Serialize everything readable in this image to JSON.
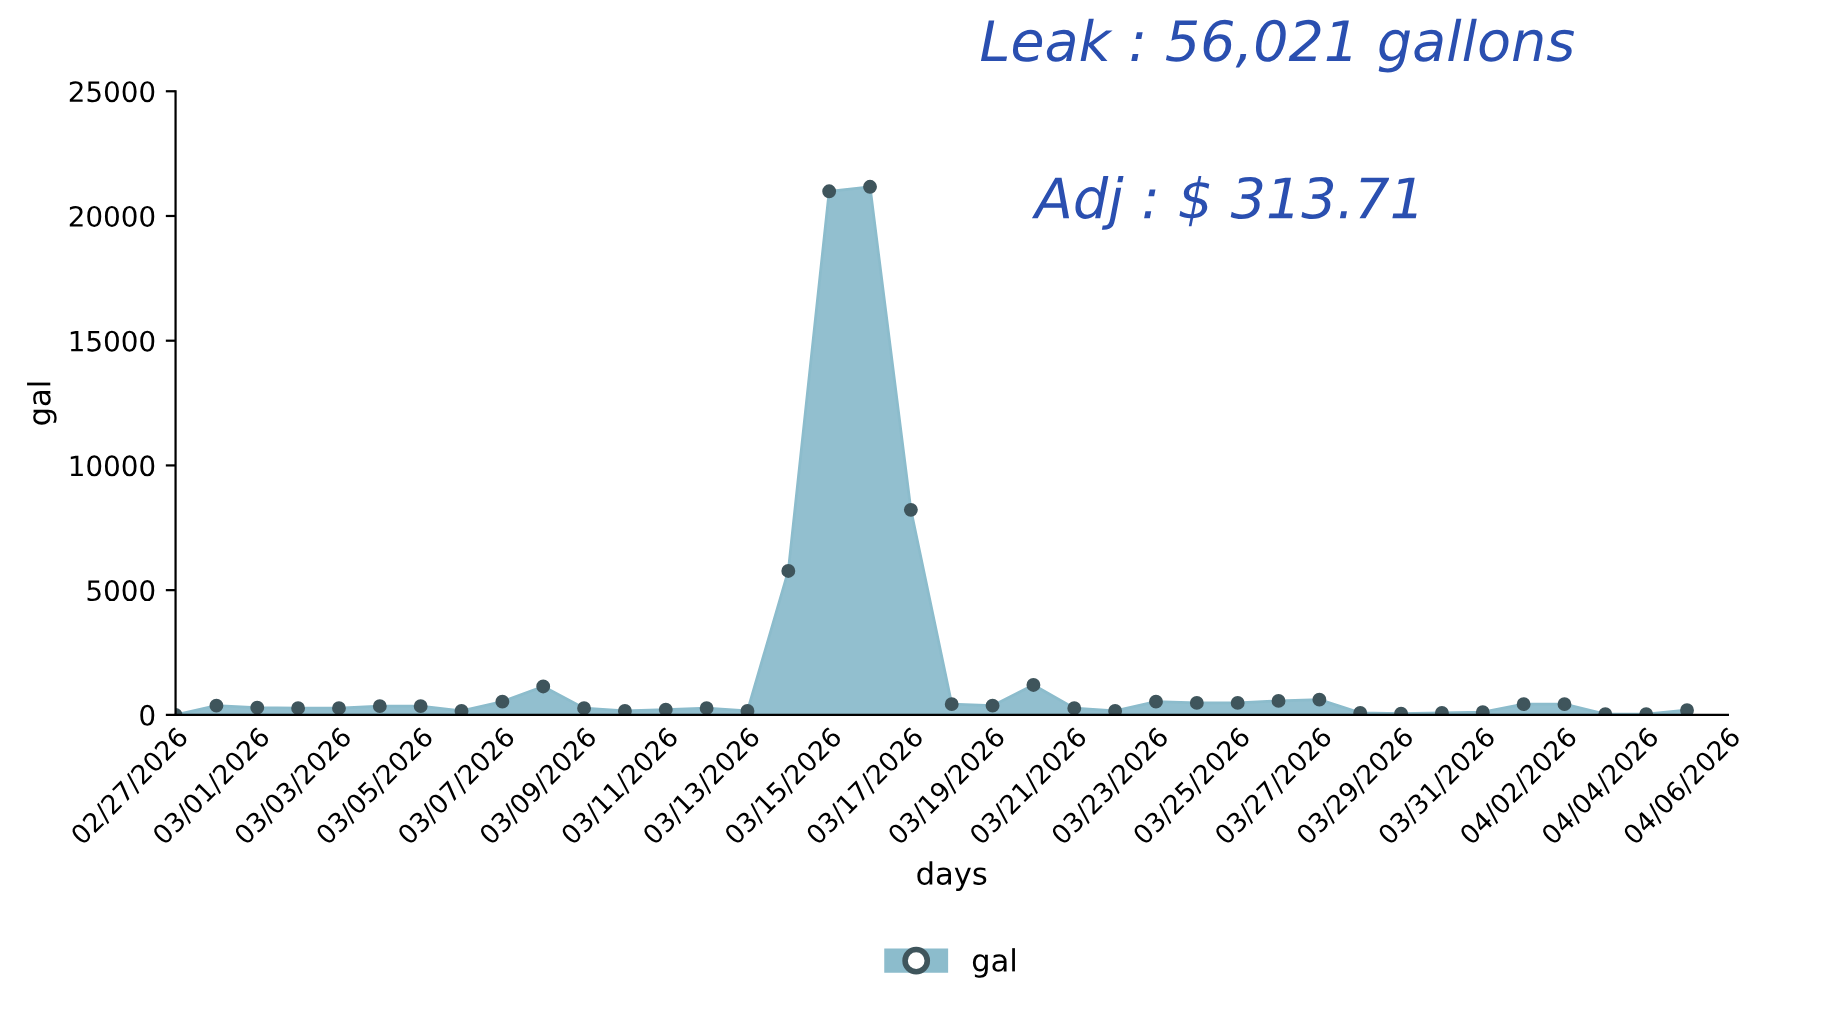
{
  "chart_data": {
    "type": "area",
    "xlabel": "days",
    "ylabel": "gal",
    "x": [
      "2026-02-27",
      "2026-02-28",
      "2026-03-01",
      "2026-03-02",
      "2026-03-03",
      "2026-03-04",
      "2026-03-05",
      "2026-03-06",
      "2026-03-07",
      "2026-03-08",
      "2026-03-09",
      "2026-03-10",
      "2026-03-11",
      "2026-03-12",
      "2026-03-13",
      "2026-03-14",
      "2026-03-15",
      "2026-03-16",
      "2026-03-17",
      "2026-03-18",
      "2026-03-19",
      "2026-03-20",
      "2026-03-21",
      "2026-03-22",
      "2026-03-23",
      "2026-03-24",
      "2026-03-25",
      "2026-03-26",
      "2026-03-27",
      "2026-03-28",
      "2026-03-29",
      "2026-03-30",
      "2026-03-31",
      "2026-04-01",
      "2026-04-02",
      "2026-04-03",
      "2026-04-04",
      "2026-04-05"
    ],
    "series": [
      {
        "name": "gal",
        "color": "#8cbccc",
        "values": [
          0,
          370,
          290,
          270,
          270,
          350,
          350,
          160,
          530,
          1140,
          270,
          160,
          210,
          270,
          160,
          5770,
          20990,
          21170,
          8220,
          430,
          370,
          1200,
          270,
          160,
          530,
          480,
          480,
          560,
          610,
          80,
          50,
          80,
          110,
          430,
          430,
          30,
          30,
          190
        ]
      }
    ],
    "xlim": [
      "2026-02-27",
      "2026-04-06"
    ],
    "xticks": [
      {
        "value": "2026-02-27",
        "label": "02/27/2026"
      },
      {
        "value": "2026-03-01",
        "label": "03/01/2026"
      },
      {
        "value": "2026-03-03",
        "label": "03/03/2026"
      },
      {
        "value": "2026-03-05",
        "label": "03/05/2026"
      },
      {
        "value": "2026-03-07",
        "label": "03/07/2026"
      },
      {
        "value": "2026-03-09",
        "label": "03/09/2026"
      },
      {
        "value": "2026-03-11",
        "label": "03/11/2026"
      },
      {
        "value": "2026-03-13",
        "label": "03/13/2026"
      },
      {
        "value": "2026-03-15",
        "label": "03/15/2026"
      },
      {
        "value": "2026-03-17",
        "label": "03/17/2026"
      },
      {
        "value": "2026-03-19",
        "label": "03/19/2026"
      },
      {
        "value": "2026-03-21",
        "label": "03/21/2026"
      },
      {
        "value": "2026-03-23",
        "label": "03/23/2026"
      },
      {
        "value": "2026-03-25",
        "label": "03/25/2026"
      },
      {
        "value": "2026-03-27",
        "label": "03/27/2026"
      },
      {
        "value": "2026-03-29",
        "label": "03/29/2026"
      },
      {
        "value": "2026-03-31",
        "label": "03/31/2026"
      },
      {
        "value": "2026-04-02",
        "label": "04/02/2026"
      },
      {
        "value": "2026-04-04",
        "label": "04/04/2026"
      },
      {
        "value": "2026-04-06",
        "label": "04/06/2026"
      }
    ],
    "ylim": [
      0,
      25000
    ],
    "yticks": [
      0,
      5000,
      10000,
      15000,
      20000,
      25000
    ],
    "grid": false,
    "legend": "bottom",
    "marker": "circle",
    "annotations": [
      "Leak : 56,021 gallons",
      "Adj : $ 313.71"
    ]
  }
}
